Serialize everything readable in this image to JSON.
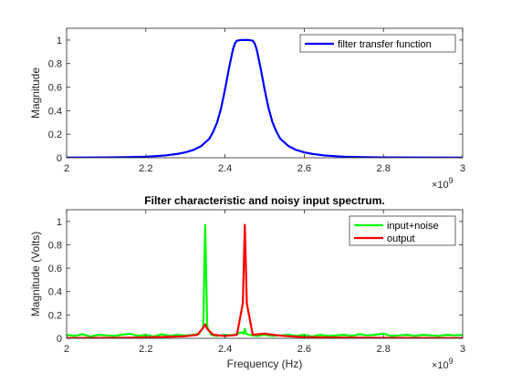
{
  "chart_data": [
    {
      "type": "line",
      "title": "",
      "xlabel": "",
      "ylabel": "Magnitude",
      "xlim": [
        2.0,
        3.0
      ],
      "ylim": [
        0,
        1.1
      ],
      "x_exponent_base": "10",
      "x_exponent": "9",
      "xticks": [
        2.0,
        2.2,
        2.4,
        2.6,
        2.8,
        3.0
      ],
      "xtick_labels": [
        "2",
        "2.2",
        "2.4",
        "2.6",
        "2.8",
        "3"
      ],
      "yticks": [
        0,
        0.2,
        0.4,
        0.6,
        0.8,
        1.0
      ],
      "ytick_labels": [
        "0",
        "0.2",
        "0.4",
        "0.6",
        "0.8",
        "1"
      ],
      "legend_position": "top-right",
      "series": [
        {
          "name": "filter transfer function",
          "color": "#0000ff",
          "x": [
            2.0,
            2.05,
            2.1,
            2.15,
            2.2,
            2.25,
            2.28,
            2.3,
            2.32,
            2.34,
            2.36,
            2.37,
            2.38,
            2.39,
            2.4,
            2.41,
            2.42,
            2.425,
            2.43,
            2.44,
            2.45,
            2.46,
            2.47,
            2.475,
            2.48,
            2.49,
            2.5,
            2.51,
            2.52,
            2.53,
            2.54,
            2.56,
            2.58,
            2.6,
            2.62,
            2.65,
            2.7,
            2.75,
            2.8,
            2.9,
            3.0
          ],
          "y": [
            0.001,
            0.002,
            0.003,
            0.005,
            0.009,
            0.02,
            0.033,
            0.046,
            0.066,
            0.1,
            0.16,
            0.22,
            0.3,
            0.42,
            0.58,
            0.76,
            0.92,
            0.97,
            0.995,
            1.0,
            1.0,
            1.0,
            0.995,
            0.97,
            0.92,
            0.76,
            0.58,
            0.42,
            0.3,
            0.22,
            0.16,
            0.1,
            0.066,
            0.046,
            0.033,
            0.02,
            0.009,
            0.005,
            0.003,
            0.002,
            0.001
          ]
        }
      ]
    },
    {
      "type": "line",
      "title": "Filter characteristic and noisy input spectrum.",
      "xlabel": "Frequency (Hz)",
      "ylabel": "Magnitude (Volts)",
      "xlim": [
        2.0,
        3.0
      ],
      "ylim": [
        0,
        1.1
      ],
      "x_exponent_base": "10",
      "x_exponent": "9",
      "xticks": [
        2.0,
        2.2,
        2.4,
        2.6,
        2.8,
        3.0
      ],
      "xtick_labels": [
        "2",
        "2.2",
        "2.4",
        "2.6",
        "2.8",
        "3"
      ],
      "yticks": [
        0,
        0.2,
        0.4,
        0.6,
        0.8,
        1.0
      ],
      "ytick_labels": [
        "0",
        "0.2",
        "0.4",
        "0.6",
        "0.8",
        "1"
      ],
      "legend_position": "top-right",
      "series": [
        {
          "name": "input+noise",
          "color": "#00ff00",
          "x": [
            2.0,
            2.02,
            2.04,
            2.06,
            2.08,
            2.1,
            2.12,
            2.14,
            2.16,
            2.18,
            2.2,
            2.22,
            2.24,
            2.26,
            2.28,
            2.3,
            2.32,
            2.335,
            2.345,
            2.35,
            2.355,
            2.365,
            2.38,
            2.4,
            2.42,
            2.44,
            2.447,
            2.45,
            2.453,
            2.46,
            2.48,
            2.5,
            2.52,
            2.54,
            2.56,
            2.58,
            2.6,
            2.62,
            2.64,
            2.66,
            2.68,
            2.7,
            2.72,
            2.74,
            2.76,
            2.78,
            2.8,
            2.82,
            2.84,
            2.86,
            2.88,
            2.9,
            2.92,
            2.94,
            2.96,
            2.98,
            3.0
          ],
          "y": [
            0.03,
            0.02,
            0.035,
            0.015,
            0.03,
            0.025,
            0.02,
            0.03,
            0.04,
            0.02,
            0.03,
            0.015,
            0.035,
            0.02,
            0.03,
            0.025,
            0.03,
            0.04,
            0.1,
            0.97,
            0.1,
            0.03,
            0.02,
            0.03,
            0.025,
            0.05,
            0.04,
            0.08,
            0.04,
            0.03,
            0.02,
            0.03,
            0.02,
            0.025,
            0.03,
            0.02,
            0.03,
            0.015,
            0.03,
            0.02,
            0.025,
            0.03,
            0.02,
            0.035,
            0.025,
            0.03,
            0.04,
            0.02,
            0.025,
            0.03,
            0.02,
            0.03,
            0.025,
            0.02,
            0.03,
            0.025,
            0.03
          ]
        },
        {
          "name": "output",
          "color": "#ff0000",
          "x": [
            2.0,
            2.05,
            2.1,
            2.15,
            2.2,
            2.25,
            2.3,
            2.33,
            2.345,
            2.35,
            2.355,
            2.37,
            2.4,
            2.43,
            2.445,
            2.45,
            2.455,
            2.47,
            2.5,
            2.52,
            2.55,
            2.6,
            2.65,
            2.7,
            2.8,
            2.9,
            3.0
          ],
          "y": [
            0.002,
            0.003,
            0.004,
            0.005,
            0.008,
            0.012,
            0.018,
            0.03,
            0.09,
            0.12,
            0.08,
            0.03,
            0.02,
            0.03,
            0.3,
            0.97,
            0.3,
            0.03,
            0.04,
            0.03,
            0.02,
            0.01,
            0.008,
            0.006,
            0.004,
            0.003,
            0.002
          ]
        }
      ]
    }
  ]
}
